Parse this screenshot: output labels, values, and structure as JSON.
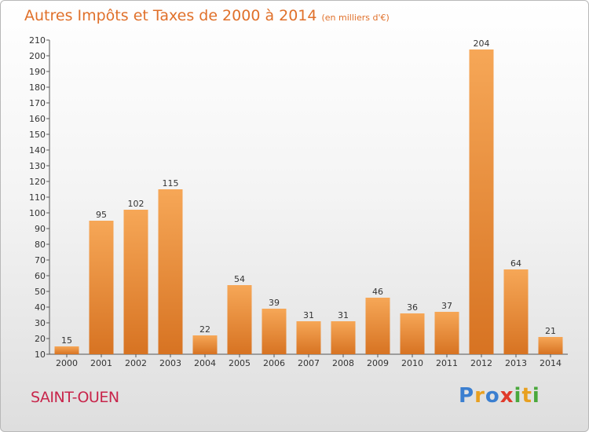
{
  "title": "Autres Impôts et Taxes de 2000 à 2014",
  "unit": "(en milliers d'€)",
  "city": "SAINT-OUEN",
  "logo": {
    "letters": [
      "P",
      "r",
      "o",
      "x",
      "i",
      "t",
      "i"
    ],
    "colors": [
      "#3b7fd0",
      "#e8a020",
      "#3b7fd0",
      "#e03a2a",
      "#4aa83c",
      "#e8a020",
      "#4aa83c"
    ]
  },
  "colors": {
    "bar_light": "#f6a757",
    "bar_dark": "#d77322",
    "title": "#e0702a",
    "city": "#c8254b"
  },
  "chart_data": {
    "type": "bar",
    "categories": [
      "2000",
      "2001",
      "2002",
      "2003",
      "2004",
      "2005",
      "2006",
      "2007",
      "2008",
      "2009",
      "2010",
      "2011",
      "2012",
      "2013",
      "2014"
    ],
    "values": [
      15,
      95,
      102,
      115,
      22,
      54,
      39,
      31,
      31,
      46,
      36,
      37,
      204,
      64,
      21
    ],
    "ylim": [
      10,
      210
    ],
    "yticks": [
      10,
      20,
      30,
      40,
      50,
      60,
      70,
      80,
      90,
      100,
      110,
      120,
      130,
      140,
      150,
      160,
      170,
      180,
      190,
      200,
      210
    ],
    "grid": false,
    "legend": "none"
  }
}
